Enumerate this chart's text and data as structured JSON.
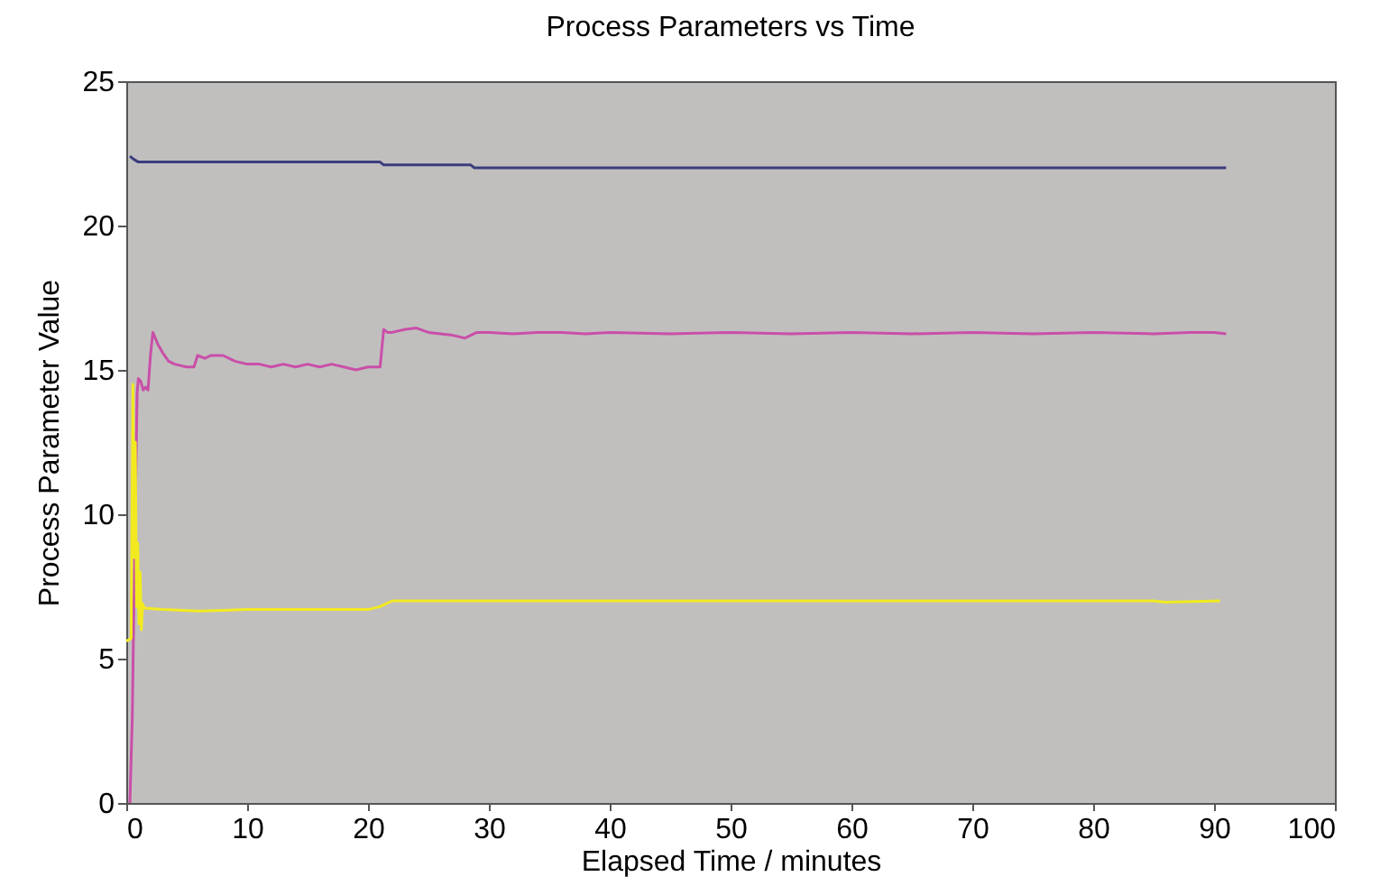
{
  "chart_data": {
    "type": "line",
    "title": "Process Parameters vs Time",
    "xlabel": "Elapsed Time / minutes",
    "ylabel": "Process Parameter Value",
    "xlim": [
      0,
      100
    ],
    "ylim": [
      0,
      25
    ],
    "xticks": [
      0,
      10,
      20,
      30,
      40,
      50,
      60,
      70,
      80,
      90,
      100
    ],
    "yticks": [
      0,
      5,
      10,
      15,
      20,
      25
    ],
    "grid": false,
    "series": [
      {
        "color": "#3b3d7e",
        "x": [
          0.3,
          0.6,
          1,
          5,
          10,
          15,
          20,
          21,
          21.3,
          25,
          28.5,
          28.8,
          35,
          45,
          55,
          65,
          75,
          85,
          91
        ],
        "values": [
          22.4,
          22.3,
          22.2,
          22.2,
          22.2,
          22.2,
          22.2,
          22.2,
          22.1,
          22.1,
          22.1,
          22.0,
          22.0,
          22.0,
          22.0,
          22.0,
          22.0,
          22.0,
          22.0
        ]
      },
      {
        "color": "#c94fa8",
        "x": [
          0.3,
          0.5,
          0.7,
          0.9,
          1.0,
          1.2,
          1.4,
          1.6,
          1.8,
          2.0,
          2.2,
          2.6,
          3.0,
          3.5,
          4,
          5,
          5.6,
          5.9,
          6.5,
          7,
          8,
          9,
          10,
          11,
          12,
          13,
          14,
          15,
          16,
          17,
          18,
          19,
          20,
          21,
          21.3,
          21.6,
          22,
          23,
          24,
          25,
          26,
          27,
          28,
          29,
          30,
          32,
          34,
          36,
          38,
          40,
          45,
          50,
          55,
          60,
          65,
          70,
          75,
          80,
          85,
          88,
          90,
          91
        ],
        "values": [
          0,
          3,
          9,
          14.2,
          14.7,
          14.6,
          14.3,
          14.4,
          14.3,
          15.5,
          16.3,
          15.9,
          15.6,
          15.3,
          15.2,
          15.1,
          15.1,
          15.5,
          15.4,
          15.5,
          15.5,
          15.3,
          15.2,
          15.2,
          15.1,
          15.2,
          15.1,
          15.2,
          15.1,
          15.2,
          15.1,
          15.0,
          15.1,
          15.1,
          16.4,
          16.3,
          16.3,
          16.4,
          16.45,
          16.3,
          16.25,
          16.2,
          16.1,
          16.3,
          16.3,
          16.25,
          16.3,
          16.3,
          16.25,
          16.3,
          16.25,
          16.3,
          16.25,
          16.3,
          16.25,
          16.3,
          16.25,
          16.3,
          16.25,
          16.3,
          16.3,
          16.25
        ]
      },
      {
        "color": "#f2ea1f",
        "x": [
          0,
          0.4,
          0.55,
          0.65,
          0.75,
          0.85,
          0.95,
          1.05,
          1.15,
          1.25,
          1.35,
          1.5,
          3,
          6,
          10,
          15,
          20,
          21,
          22,
          30,
          40,
          50,
          60,
          70,
          80,
          85,
          86,
          90.5
        ],
        "values": [
          5.6,
          5.7,
          14.5,
          8.5,
          12.5,
          6.8,
          9,
          6.2,
          8,
          6.0,
          6.9,
          6.75,
          6.7,
          6.65,
          6.7,
          6.7,
          6.7,
          6.8,
          7.0,
          7.0,
          7.0,
          7.0,
          7.0,
          7.0,
          7.0,
          7.0,
          6.95,
          7.0
        ]
      }
    ]
  }
}
